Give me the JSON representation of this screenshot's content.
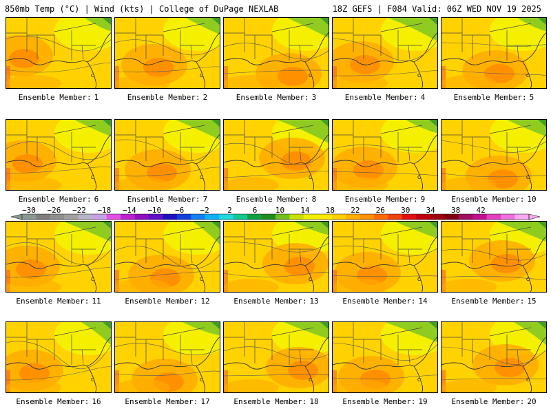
{
  "header": {
    "left": "850mb Temp (°C) | Wind (kts) | College of DuPage NEXLAB",
    "right": "18Z GEFS | F084 Valid: 06Z WED NOV 19 2025"
  },
  "member_prefix": "Ensemble Member:",
  "members": [
    {
      "id": 1,
      "number": "1"
    },
    {
      "id": 2,
      "number": "2"
    },
    {
      "id": 3,
      "number": "3"
    },
    {
      "id": 4,
      "number": "4"
    },
    {
      "id": 5,
      "number": "5"
    },
    {
      "id": 6,
      "number": "6"
    },
    {
      "id": 7,
      "number": "7"
    },
    {
      "id": 8,
      "number": "8"
    },
    {
      "id": 9,
      "number": "9"
    },
    {
      "id": 10,
      "number": "10"
    },
    {
      "id": 11,
      "number": "11"
    },
    {
      "id": 12,
      "number": "12"
    },
    {
      "id": 13,
      "number": "13"
    },
    {
      "id": 14,
      "number": "14"
    },
    {
      "id": 15,
      "number": "15"
    },
    {
      "id": 16,
      "number": "16"
    },
    {
      "id": 17,
      "number": "17"
    },
    {
      "id": 18,
      "number": "18"
    },
    {
      "id": 19,
      "number": "19"
    },
    {
      "id": 20,
      "number": "20"
    }
  ],
  "colorbar": {
    "labels": [
      "−30",
      "−26",
      "−22",
      "−18",
      "−14",
      "−10",
      "−6",
      "−2",
      "2",
      "6",
      "10",
      "14",
      "18",
      "22",
      "26",
      "30",
      "34",
      "38",
      "42"
    ],
    "colors": [
      "#8a9a90",
      "#7d7d7d",
      "#8f8f8f",
      "#a0a0a0",
      "#b6b6c8",
      "#c8a0e6",
      "#e250e6",
      "#c020d0",
      "#9010c0",
      "#6010c8",
      "#2010c0",
      "#1040e0",
      "#1080f0",
      "#10b0f8",
      "#20d8e0",
      "#10c890",
      "#10a040",
      "#208c20",
      "#70c020",
      "#c8e000",
      "#f0f000",
      "#ffe800",
      "#ffd000",
      "#ffb000",
      "#ff9000",
      "#ff6a00",
      "#f04010",
      "#e01010",
      "#c00010",
      "#a00010",
      "#800010",
      "#a01060",
      "#c01090",
      "#e040c0",
      "#f070e0",
      "#f8a8f0"
    ]
  },
  "map_colors": {
    "base": "#ffd200",
    "cool": "#f4f000",
    "green": "#90cc20",
    "dark_green": "#40a020",
    "warm": "#ffac00",
    "hot": "#ff8a00",
    "hottest": "#f86020"
  }
}
